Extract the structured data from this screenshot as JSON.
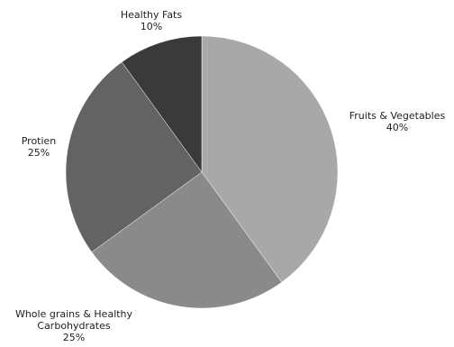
{
  "chart_data": {
    "type": "pie",
    "slices": [
      {
        "label": [
          "Fruits & Vegetables"
        ],
        "percent_text": "40%",
        "value": 40,
        "color": "#a8a8a8"
      },
      {
        "label": [
          "Whole grains & Healthy",
          "Carbohydrates"
        ],
        "percent_text": "25%",
        "value": 25,
        "color": "#8a8a8a"
      },
      {
        "label": [
          "Protien"
        ],
        "percent_text": "25%",
        "value": 25,
        "color": "#636363"
      },
      {
        "label": [
          "Healthy Fats"
        ],
        "percent_text": "10%",
        "value": 10,
        "color": "#3a3a3a"
      }
    ],
    "start_direction": "12 o'clock",
    "order": "clockwise",
    "legend": "none"
  }
}
